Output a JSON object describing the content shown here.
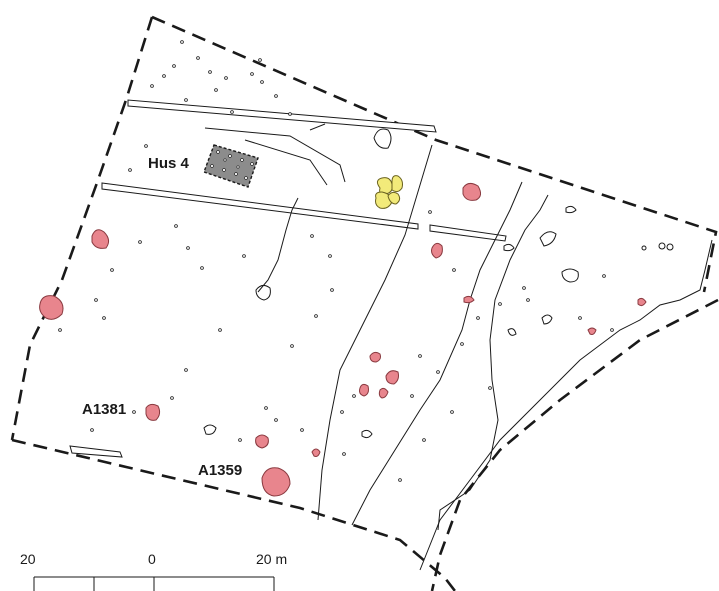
{
  "labels": {
    "house": "Hus 4",
    "feature_a": "A1381",
    "feature_b": "A1359"
  },
  "scale_bar": {
    "left_value": "20",
    "middle_value": "0",
    "right_value": "20 m"
  },
  "colors": {
    "pit_fill": "#e8858d",
    "pit_stroke": "#8a3a40",
    "hearth_fill": "#f2ea7a",
    "hearth_stroke": "#6b6320",
    "house_fill": "#8c8c8c",
    "line": "#1a1a1a"
  }
}
